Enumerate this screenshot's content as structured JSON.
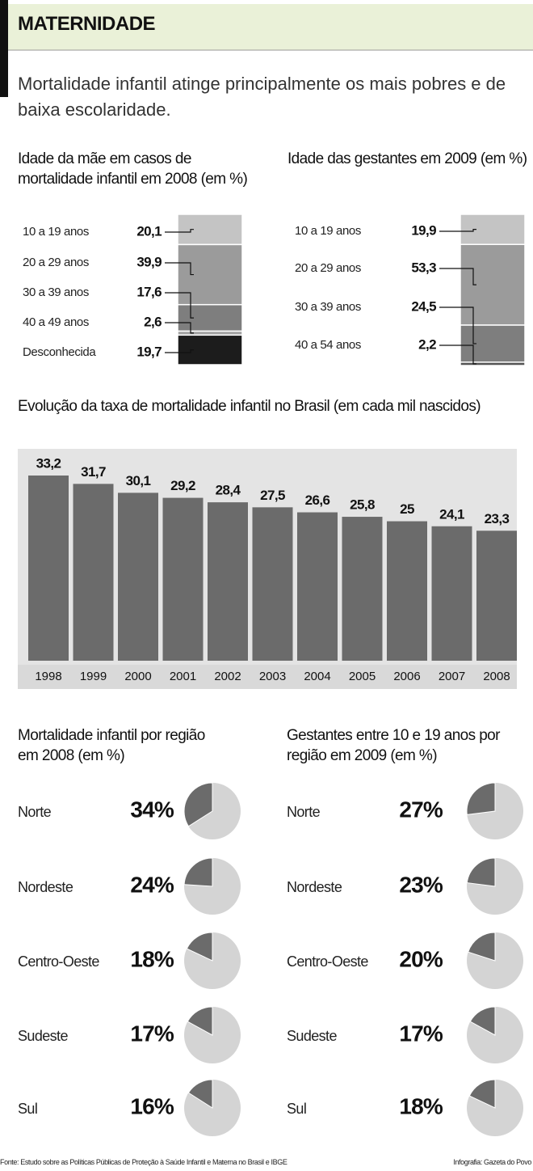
{
  "header": {
    "title": "MATERNIDADE",
    "subtitle": "Mortalidade infantil atinge principalmente os mais pobres e de baixa escolaridade."
  },
  "chart_data": [
    {
      "type": "stacked-bar",
      "title": "Idade da mãe em casos de mortalidade infantil em 2008 (em %)",
      "categories": [
        "10 a 19 anos",
        "20 a 29 anos",
        "30 a 39 anos",
        "40 a 49 anos",
        "Desconhecida"
      ],
      "values": [
        20.1,
        39.9,
        17.6,
        2.6,
        19.7
      ],
      "value_labels": [
        "20,1",
        "39,9",
        "17,6",
        "2,6",
        "19,7"
      ],
      "colors": [
        "#c4c4c4",
        "#9b9b9b",
        "#7e7e7e",
        "#a3a3a3",
        "#1c1c1c"
      ]
    },
    {
      "type": "stacked-bar",
      "title": "Idade das gestantes em 2009 (em %)",
      "categories": [
        "10 a 19 anos",
        "20 a 29 anos",
        "30 a 39 anos",
        "40 a 54 anos"
      ],
      "values": [
        19.9,
        53.3,
        24.5,
        2.2
      ],
      "value_labels": [
        "19,9",
        "53,3",
        "24,5",
        "2,2"
      ],
      "colors": [
        "#c4c4c4",
        "#9b9b9b",
        "#7e7e7e",
        "#555555"
      ]
    },
    {
      "type": "bar",
      "title": "Evolução da taxa de mortalidade infantil no Brasil (em cada mil nascidos)",
      "categories": [
        "1998",
        "1999",
        "2000",
        "2001",
        "2002",
        "2003",
        "2004",
        "2005",
        "2006",
        "2007",
        "2008"
      ],
      "values": [
        33.2,
        31.7,
        30.1,
        29.2,
        28.4,
        27.5,
        26.6,
        25.8,
        25,
        24.1,
        23.3
      ],
      "value_labels": [
        "33,2",
        "31,7",
        "30,1",
        "29,2",
        "28,4",
        "27,5",
        "26,6",
        "25,8",
        "25",
        "24,1",
        "23,3"
      ],
      "color": "#6b6b6b"
    },
    {
      "type": "pie",
      "title": "Mortalidade infantil por região em 2008 (em %)",
      "categories": [
        "Norte",
        "Nordeste",
        "Centro-Oeste",
        "Sudeste",
        "Sul"
      ],
      "values": [
        34,
        24,
        18,
        17,
        16
      ],
      "value_labels": [
        "34%",
        "24%",
        "18%",
        "17%",
        "16%"
      ],
      "colors": [
        "#6b6b6b",
        "#d4d4d4"
      ]
    },
    {
      "type": "pie",
      "title": "Gestantes entre 10 e 19 anos por região em 2009 (em %)",
      "categories": [
        "Norte",
        "Nordeste",
        "Centro-Oeste",
        "Sudeste",
        "Sul"
      ],
      "values": [
        27,
        23,
        20,
        17,
        18
      ],
      "value_labels": [
        "27%",
        "23%",
        "20%",
        "17%",
        "18%"
      ],
      "colors": [
        "#6b6b6b",
        "#d4d4d4"
      ]
    }
  ],
  "footer": {
    "source": "Fonte: Estudo sobre as Políticas Públicas de Proteção à Saúde Infantil e Materna no Brasil e IBGE",
    "credit": "Infografia: Gazeta do Povo"
  }
}
